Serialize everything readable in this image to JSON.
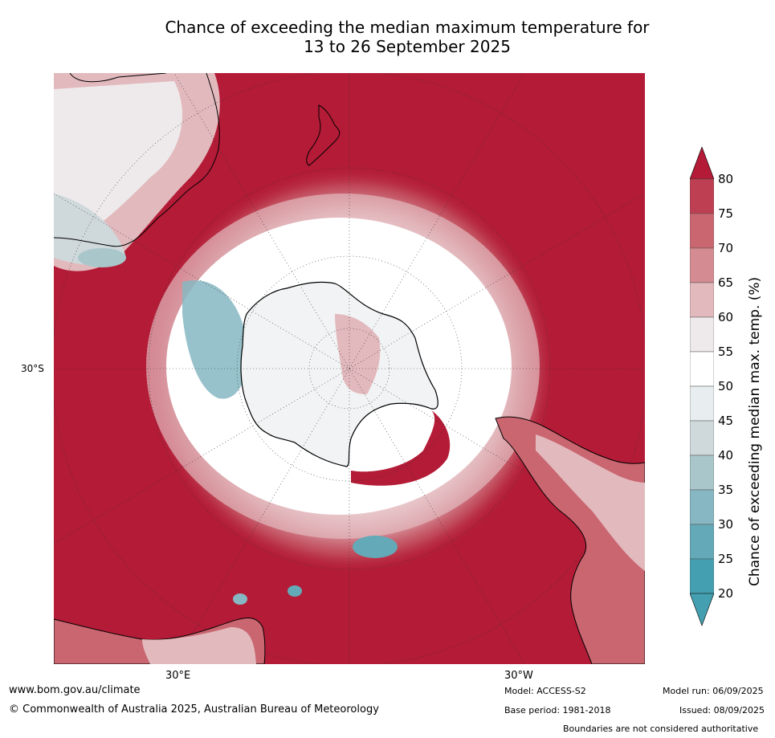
{
  "title_line1": "Chance of exceeding the median maximum temperature for",
  "title_line2": "13 to 26 September 2025",
  "map": {
    "projection": "south-polar-stereographic",
    "lat_label": "30°S",
    "lon_labels": [
      "30°E",
      "30°W"
    ],
    "ocean_fill_value_class": "80+"
  },
  "colorbar": {
    "label": "Chance of exceeding median max. temp. (%)",
    "ticks": [
      "80",
      "75",
      "70",
      "65",
      "60",
      "55",
      "50",
      "45",
      "40",
      "35",
      "30",
      "25",
      "20"
    ],
    "colors": [
      "#b31b36",
      "#be3f51",
      "#c96670",
      "#d48b92",
      "#e2b9bd",
      "#eeeaeb",
      "#ffffff",
      "#e8edf0",
      "#cfd8db",
      "#a9c6cb",
      "#86b7c2",
      "#64a9b7",
      "#449fb0"
    ],
    "extend": "both"
  },
  "footer": {
    "url": "www.bom.gov.au/climate",
    "copyright": "© Commonwealth of Australia 2025, Australian Bureau of Meteorology",
    "model": "Model: ACCESS-S2",
    "base_period": "Base period: 1981-2018",
    "model_run": "Model run: 06/09/2025",
    "issued": "Issued: 08/09/2025",
    "disclaimer": "Boundaries are not considered authoritative"
  }
}
